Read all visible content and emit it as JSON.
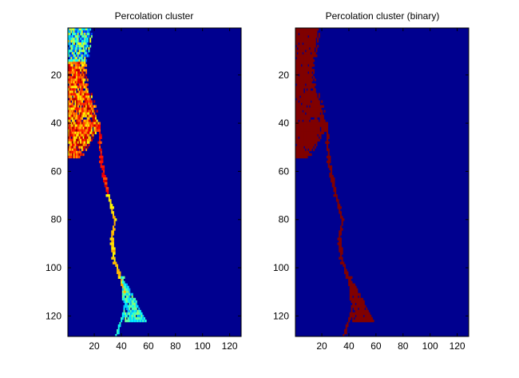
{
  "chart_data": [
    {
      "type": "heatmap",
      "title": "Percolation cluster",
      "colormap": "jet",
      "background_color": "#00008f",
      "xlim": [
        0.5,
        128.5
      ],
      "ylim": [
        0.5,
        128.5
      ],
      "y_direction": "reversed",
      "xticks": [
        20,
        40,
        60,
        80,
        100,
        120
      ],
      "yticks": [
        20,
        40,
        60,
        80,
        100,
        120
      ],
      "xtick_labels": [
        "20",
        "40",
        "60",
        "80",
        "100",
        "120"
      ],
      "ytick_labels": [
        "20",
        "40",
        "60",
        "80",
        "100",
        "120"
      ],
      "grid": false
    },
    {
      "type": "heatmap",
      "title": "Percolation cluster (binary)",
      "colormap": "binary",
      "background_color": "#00008f",
      "cluster_color": "#800000",
      "xlim": [
        0.5,
        128.5
      ],
      "ylim": [
        0.5,
        128.5
      ],
      "y_direction": "reversed",
      "xticks": [
        20,
        40,
        60,
        80,
        100,
        120
      ],
      "yticks": [
        20,
        40,
        60,
        80,
        100,
        120
      ],
      "xtick_labels": [
        "20",
        "40",
        "60",
        "80",
        "100",
        "120"
      ],
      "ytick_labels": [
        "20",
        "40",
        "60",
        "80",
        "100",
        "120"
      ],
      "grid": false
    }
  ]
}
